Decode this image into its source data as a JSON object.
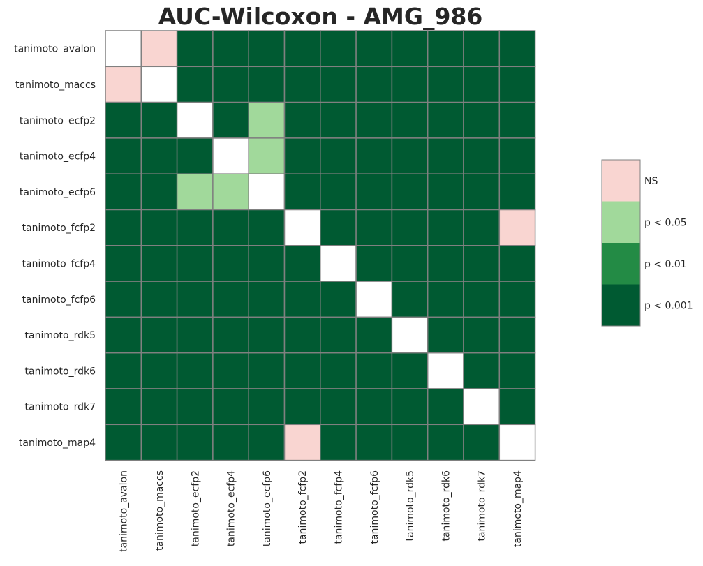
{
  "chart_data": {
    "type": "heatmap",
    "title": "AUC-Wilcoxon - AMG_986",
    "xlabel": "",
    "ylabel": "",
    "labels": [
      "tanimoto_avalon",
      "tanimoto_maccs",
      "tanimoto_ecfp2",
      "tanimoto_ecfp4",
      "tanimoto_ecfp6",
      "tanimoto_fcfp2",
      "tanimoto_fcfp4",
      "tanimoto_fcfp6",
      "tanimoto_rdk5",
      "tanimoto_rdk6",
      "tanimoto_rdk7",
      "tanimoto_map4"
    ],
    "levels": [
      {
        "code": 0,
        "label": "NS",
        "color": "#f9d5d1"
      },
      {
        "code": 1,
        "label": "p < 0.05",
        "color": "#a1d99b"
      },
      {
        "code": 2,
        "label": "p < 0.01",
        "color": "#238b45"
      },
      {
        "code": 3,
        "label": "p < 0.001",
        "color": "#005a32"
      }
    ],
    "diagonal_color": "#ffffff",
    "grid_color": "#808080",
    "matrix": [
      [
        null,
        0,
        3,
        3,
        3,
        3,
        3,
        3,
        3,
        3,
        3,
        3
      ],
      [
        0,
        null,
        3,
        3,
        3,
        3,
        3,
        3,
        3,
        3,
        3,
        3
      ],
      [
        3,
        3,
        null,
        3,
        1,
        3,
        3,
        3,
        3,
        3,
        3,
        3
      ],
      [
        3,
        3,
        3,
        null,
        1,
        3,
        3,
        3,
        3,
        3,
        3,
        3
      ],
      [
        3,
        3,
        1,
        1,
        null,
        3,
        3,
        3,
        3,
        3,
        3,
        3
      ],
      [
        3,
        3,
        3,
        3,
        3,
        null,
        3,
        3,
        3,
        3,
        3,
        0
      ],
      [
        3,
        3,
        3,
        3,
        3,
        3,
        null,
        3,
        3,
        3,
        3,
        3
      ],
      [
        3,
        3,
        3,
        3,
        3,
        3,
        3,
        null,
        3,
        3,
        3,
        3
      ],
      [
        3,
        3,
        3,
        3,
        3,
        3,
        3,
        3,
        null,
        3,
        3,
        3
      ],
      [
        3,
        3,
        3,
        3,
        3,
        3,
        3,
        3,
        3,
        null,
        3,
        3
      ],
      [
        3,
        3,
        3,
        3,
        3,
        3,
        3,
        3,
        3,
        3,
        null,
        3
      ],
      [
        3,
        3,
        3,
        3,
        3,
        0,
        3,
        3,
        3,
        3,
        3,
        null
      ]
    ],
    "legend_position": "right"
  }
}
